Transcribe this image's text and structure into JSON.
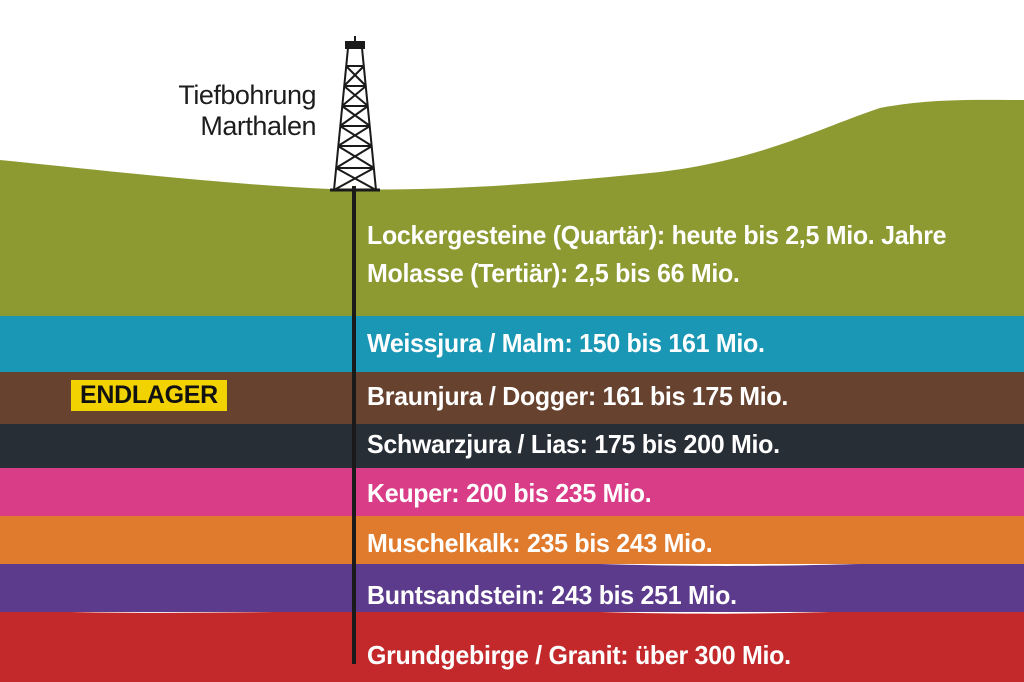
{
  "drill": {
    "name_line1": "Tiefbohrung",
    "name_line2": "Marthalen"
  },
  "repository_marker": {
    "label": "ENDLAGER",
    "color": "#f2d200"
  },
  "layers": [
    {
      "line1": "Lockergesteine (Quartär): heute bis 2,5 Mio. Jahre",
      "line2": "Molasse (Tertiär): 2,5 bis 66 Mio.",
      "color": "#8c9a31"
    },
    {
      "line1": "Weissjura / Malm: 150 bis 161 Mio.",
      "color": "#1a97b5"
    },
    {
      "line1": "Braunjura / Dogger: 161 bis 175 Mio.",
      "color": "#67432f"
    },
    {
      "line1": "Schwarzjura / Lias: 175 bis 200 Mio.",
      "color": "#282e35"
    },
    {
      "line1": "Keuper: 200 bis 235 Mio.",
      "color": "#d93d87"
    },
    {
      "line1": "Muschelkalk: 235 bis 243 Mio.",
      "color": "#e07a2c"
    },
    {
      "line1": "Buntsandstein: 243 bis 251 Mio.",
      "color": "#5c3b8d"
    },
    {
      "line1": "Grundgebirge / Granit: über 300 Mio.",
      "color": "#c3282b"
    }
  ]
}
